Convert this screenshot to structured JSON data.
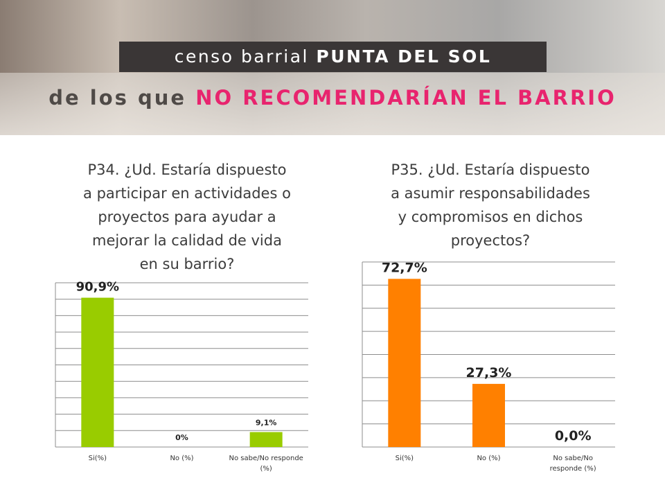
{
  "header": {
    "band_regular": "censo barrial",
    "band_bold": "PUNTA DEL SOL",
    "subtitle_regular": "de los que",
    "subtitle_highlight": "NO RECOMENDARÍAN EL BARRIO"
  },
  "colors": {
    "accent": "#e8246e",
    "band": "#3a3636",
    "green": "#99cc00",
    "orange": "#ff8000"
  },
  "questions": [
    {
      "lines": [
        "P34. ¿Ud. Estaría dispuesto",
        "a participar en actividades o",
        "proyectos para ayudar a",
        "mejorar la calidad de vida",
        "en su barrio?"
      ]
    },
    {
      "lines": [
        "P35. ¿Ud. Estaría dispuesto",
        "a asumir responsabilidades",
        "y compromisos en dichos",
        "proyectos?"
      ]
    }
  ],
  "chart_data": [
    {
      "type": "bar",
      "categories": [
        "Si(%)",
        "No (%)",
        "No sabe/No responde (%)"
      ],
      "category_lines": [
        [
          "Si(%)"
        ],
        [
          "No (%)"
        ],
        [
          "No sabe/No responde",
          "(%)"
        ]
      ],
      "values": [
        90.9,
        0,
        9.1
      ],
      "labels": [
        "90,9%",
        "0%",
        "9,1%"
      ],
      "ylim": [
        0,
        100
      ],
      "color": "#99cc00",
      "grid": true
    },
    {
      "type": "bar",
      "categories": [
        "Si(%)",
        "No (%)",
        "No sabe/No responde (%)"
      ],
      "category_lines": [
        [
          "Si(%)"
        ],
        [
          "No (%)"
        ],
        [
          "No sabe/No",
          "responde (%)"
        ]
      ],
      "values": [
        72.7,
        27.3,
        0.0
      ],
      "labels": [
        "72,7%",
        "27,3%",
        "0,0%"
      ],
      "ylim": [
        0,
        80
      ],
      "color": "#ff8000",
      "grid": true
    }
  ]
}
